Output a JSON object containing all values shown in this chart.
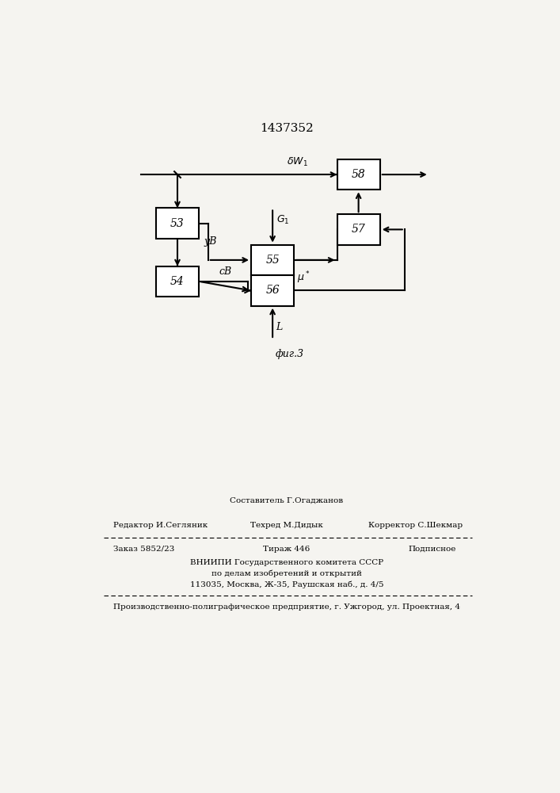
{
  "patent_number": "1437352",
  "fig_caption": "фиг.3",
  "bg_color": "#f5f4f0",
  "footer_line1_center_above": "Составитель Г.Огаджанов",
  "footer_line1_left": "Редактор И.Сегляник",
  "footer_line1_center": "Техред М.Дидык",
  "footer_line1_right": "Корректор С.Шекмар",
  "footer_line2_left": "Заказ 5852/23",
  "footer_line2_center": "Тираж 446",
  "footer_line2_right": "Подписное",
  "footer_line3": "ВНИИПИ Государственного комитета СССР",
  "footer_line4": "по делам изобретений и открытий",
  "footer_line5": "113035, Москва, Ж-35, Раушская наб., д. 4/5",
  "footer_line6": "Производственно-полиграфическое предприятие, г. Ужгород, ул. Проектная, 4"
}
